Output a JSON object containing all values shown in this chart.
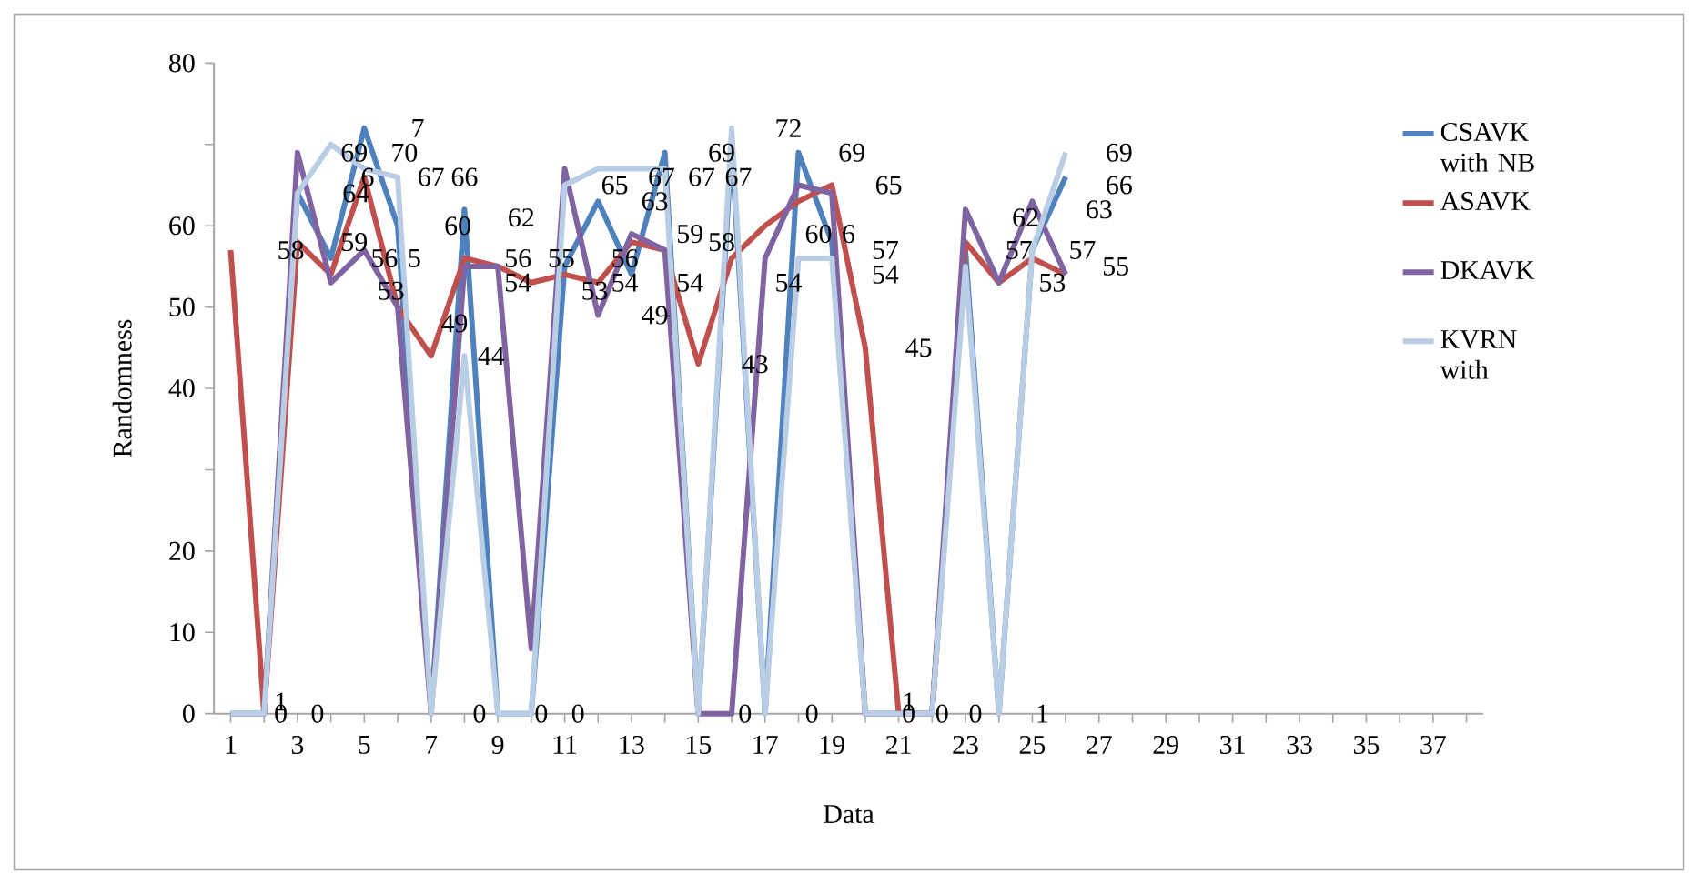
{
  "chart_data": {
    "type": "line",
    "xlabel": "Data",
    "ylabel": "Randomness",
    "x": [
      1,
      2,
      3,
      4,
      5,
      6,
      7,
      8,
      9,
      10,
      11,
      12,
      13,
      14,
      15,
      16,
      17,
      18,
      19,
      20,
      21,
      22,
      23,
      24,
      25,
      26
    ],
    "xlim": [
      0.5,
      38.5
    ],
    "xticks": [
      1,
      {
        "value": 2,
        "label": null
      },
      3,
      {
        "value": 4,
        "label": null
      },
      5,
      {
        "value": 6,
        "label": null
      },
      7,
      {
        "value": 8,
        "label": null
      },
      9,
      {
        "value": 10,
        "label": null
      },
      11,
      {
        "value": 12,
        "label": null
      },
      13,
      {
        "value": 14,
        "label": null
      },
      15,
      {
        "value": 16,
        "label": null
      },
      17,
      {
        "value": 18,
        "label": null
      },
      19,
      {
        "value": 20,
        "label": null
      },
      21,
      {
        "value": 22,
        "label": null
      },
      23,
      {
        "value": 24,
        "label": null
      },
      25,
      {
        "value": 26,
        "label": null
      },
      27,
      {
        "value": 28,
        "label": null
      },
      29,
      {
        "value": 30,
        "label": null
      },
      31,
      {
        "value": 32,
        "label": null
      },
      33,
      {
        "value": 34,
        "label": null
      },
      35,
      {
        "value": 36,
        "label": null
      },
      37,
      {
        "value": 38,
        "label": null
      }
    ],
    "ylim": [
      0,
      80
    ],
    "yticks": [
      0,
      10,
      20,
      {
        "value": 30,
        "label": null
      },
      40,
      50,
      60,
      {
        "value": 70,
        "label": null
      },
      80
    ],
    "legend": "right",
    "grid": false,
    "marker": "none",
    "line_style": "solid",
    "series": [
      {
        "name": "CSAVK with NB",
        "color": "#4f81bd",
        "values": [
          0,
          0,
          64,
          56,
          72,
          60,
          0,
          62,
          0,
          0,
          55,
          63,
          54,
          69,
          0,
          70,
          0,
          69,
          58,
          0,
          0,
          0,
          57,
          0,
          57,
          66
        ]
      },
      {
        "name": "ASAVK",
        "color": "#c0504d",
        "values": [
          57,
          0,
          58,
          54,
          66,
          50,
          44,
          56,
          55,
          53,
          54,
          53,
          58,
          57,
          43,
          56,
          60,
          63,
          65,
          45,
          0,
          0,
          58,
          53,
          56,
          54
        ]
      },
      {
        "name": "DKAVK",
        "color": "#8064a2",
        "values": [
          0,
          0,
          69,
          53,
          57,
          50,
          0,
          55,
          55,
          8,
          67,
          49,
          59,
          57,
          0,
          0,
          56,
          65,
          64,
          0,
          0,
          0,
          62,
          53,
          63,
          54
        ]
      },
      {
        "name": "KVRN with",
        "color": "#b9cde5",
        "values": [
          0,
          0,
          64,
          70,
          67,
          66,
          0,
          44,
          0,
          0,
          65,
          67,
          67,
          67,
          0,
          72,
          0,
          56,
          56,
          0,
          0,
          0,
          55,
          0,
          57,
          69
        ]
      }
    ],
    "annotations": [
      "58",
      "69",
      "64",
      "6",
      "70",
      "7",
      "67",
      "66",
      "59",
      "56",
      "5",
      "53",
      "60",
      "49",
      "44",
      "62",
      "56",
      "55",
      "54",
      "53",
      "65",
      "56",
      "54",
      "63",
      "67",
      "67",
      "67",
      "69",
      "59",
      "58",
      "54",
      "49",
      "43",
      "72",
      "54",
      "60",
      "6",
      "69",
      "65",
      "57",
      "54",
      "45",
      "62",
      "57",
      "53",
      "63",
      "69",
      "66",
      "57",
      "55",
      "1",
      "0",
      "0",
      "0",
      "0",
      "0",
      "0",
      "0",
      "1",
      "0",
      "0",
      "0",
      "1"
    ]
  }
}
